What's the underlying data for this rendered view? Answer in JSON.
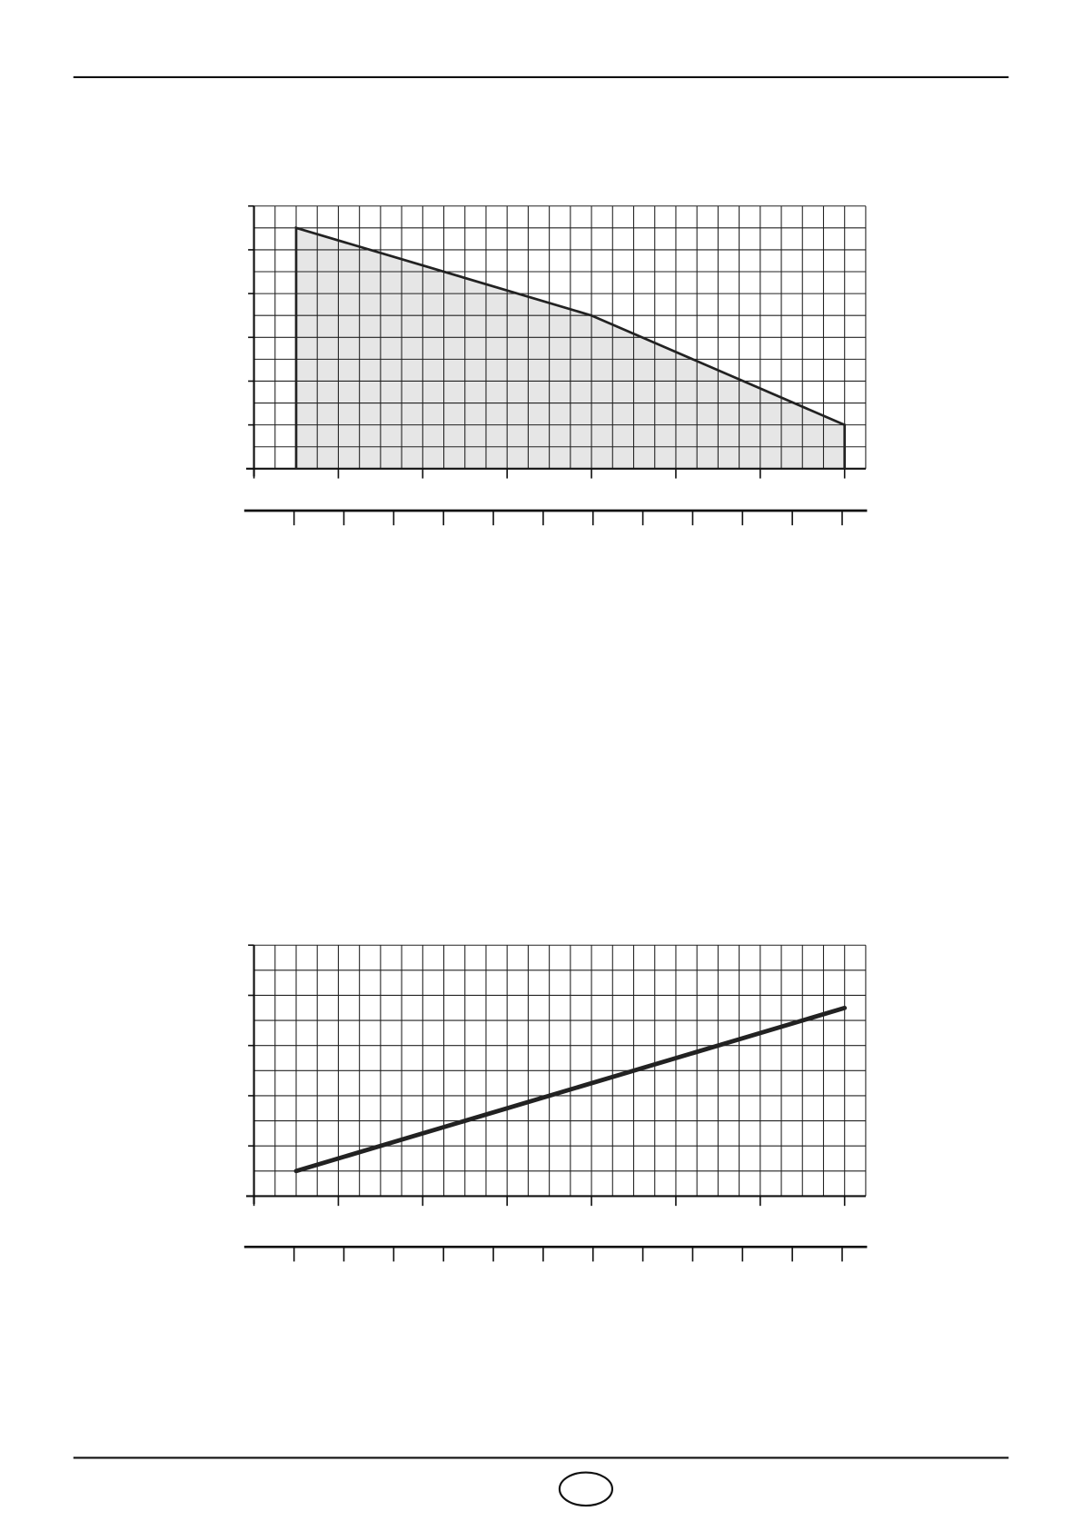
{
  "chart_data": [
    {
      "type": "area",
      "color": "#e6e6e6",
      "line_color": "#222222",
      "line_width": 2.5,
      "x": [
        0.5,
        0.5,
        4,
        7,
        7
      ],
      "values": [
        0,
        5.5,
        3.5,
        1,
        0
      ],
      "xlim": [
        0,
        7.25
      ],
      "ylim": [
        0,
        6
      ],
      "xticks": [
        0,
        1,
        2,
        3,
        4,
        5,
        6,
        7
      ],
      "yticks": [
        0,
        1,
        2,
        3,
        4,
        5,
        6
      ],
      "grid": true,
      "xgrid": [
        0,
        0.25,
        0.5,
        0.75,
        1,
        1.25,
        1.5,
        1.75,
        2,
        2.25,
        2.5,
        2.75,
        3,
        3.25,
        3.5,
        3.75,
        4,
        4.25,
        4.5,
        4.75,
        5,
        5.25,
        5.5,
        5.75,
        6,
        6.25,
        6.5,
        6.75,
        7,
        7.25
      ],
      "ygrid": [
        0,
        0.5,
        1,
        1.5,
        2,
        2.5,
        3,
        3.5,
        4,
        4.5,
        5,
        5.5,
        6
      ],
      "x2lim": [
        -1,
        11.5
      ],
      "x2ticks": [
        0,
        1,
        2,
        3,
        4,
        5,
        6,
        7,
        8,
        9,
        10,
        11
      ]
    },
    {
      "type": "line",
      "color": "#222222",
      "line_width": 4.5,
      "x": [
        0.5,
        7
      ],
      "values": [
        0.5,
        3.75
      ],
      "xlim": [
        0,
        7.25
      ],
      "ylim": [
        0,
        5
      ],
      "xticks": [
        0,
        1,
        2,
        3,
        4,
        5,
        6,
        7
      ],
      "yticks": [
        0,
        1,
        2,
        3,
        4,
        5
      ],
      "grid": true,
      "xgrid": [
        0,
        0.25,
        0.5,
        0.75,
        1,
        1.25,
        1.5,
        1.75,
        2,
        2.25,
        2.5,
        2.75,
        3,
        3.25,
        3.5,
        3.75,
        4,
        4.25,
        4.5,
        4.75,
        5,
        5.25,
        5.5,
        5.75,
        6,
        6.25,
        6.5,
        6.75,
        7,
        7.25
      ],
      "ygrid": [
        0,
        0.5,
        1,
        1.5,
        2,
        2.5,
        3,
        3.5,
        4,
        4.5,
        5
      ],
      "x2lim": [
        -1,
        11.5
      ],
      "x2ticks": [
        0,
        1,
        2,
        3,
        4,
        5,
        6,
        7,
        8,
        9,
        10,
        11
      ]
    }
  ]
}
